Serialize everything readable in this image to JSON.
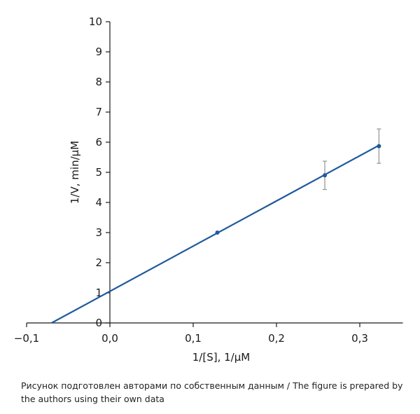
{
  "chart_data": {
    "type": "scatter",
    "title": "",
    "xlabel": "1/[S], 1/μM",
    "ylabel": "1/V, min/μM",
    "xlim": [
      -0.1,
      0.35
    ],
    "ylim": [
      0,
      10
    ],
    "x_ticks": [
      -0.1,
      0.0,
      0.1,
      0.2,
      0.3
    ],
    "x_tick_labels": [
      "−0,1",
      "0,0",
      "0,1",
      "0,2",
      "0,3"
    ],
    "y_ticks": [
      0,
      1,
      2,
      3,
      4,
      5,
      6,
      7,
      8,
      9,
      10
    ],
    "y_tick_labels": [
      "0",
      "1",
      "2",
      "3",
      "4",
      "5",
      "6",
      "7",
      "8",
      "9",
      "10"
    ],
    "grid": false,
    "series": [
      {
        "points": [
          {
            "x": 0.129,
            "y": 3.0,
            "error": 0
          },
          {
            "x": 0.258,
            "y": 4.9,
            "error": 0.47
          },
          {
            "x": 0.323,
            "y": 5.87,
            "error": 0.57
          }
        ]
      }
    ],
    "fit_line": {
      "x_start": -0.07,
      "x_end": 0.323,
      "slope": 15.0,
      "intercept": 1.05
    }
  },
  "caption": "Рисунок подготовлен авторами по собственным данным / The figure is prepared by the authors using their own data",
  "colors": {
    "line": "#1f5a9c",
    "errorbar": "#999999",
    "axis": "#1a1a1a"
  }
}
